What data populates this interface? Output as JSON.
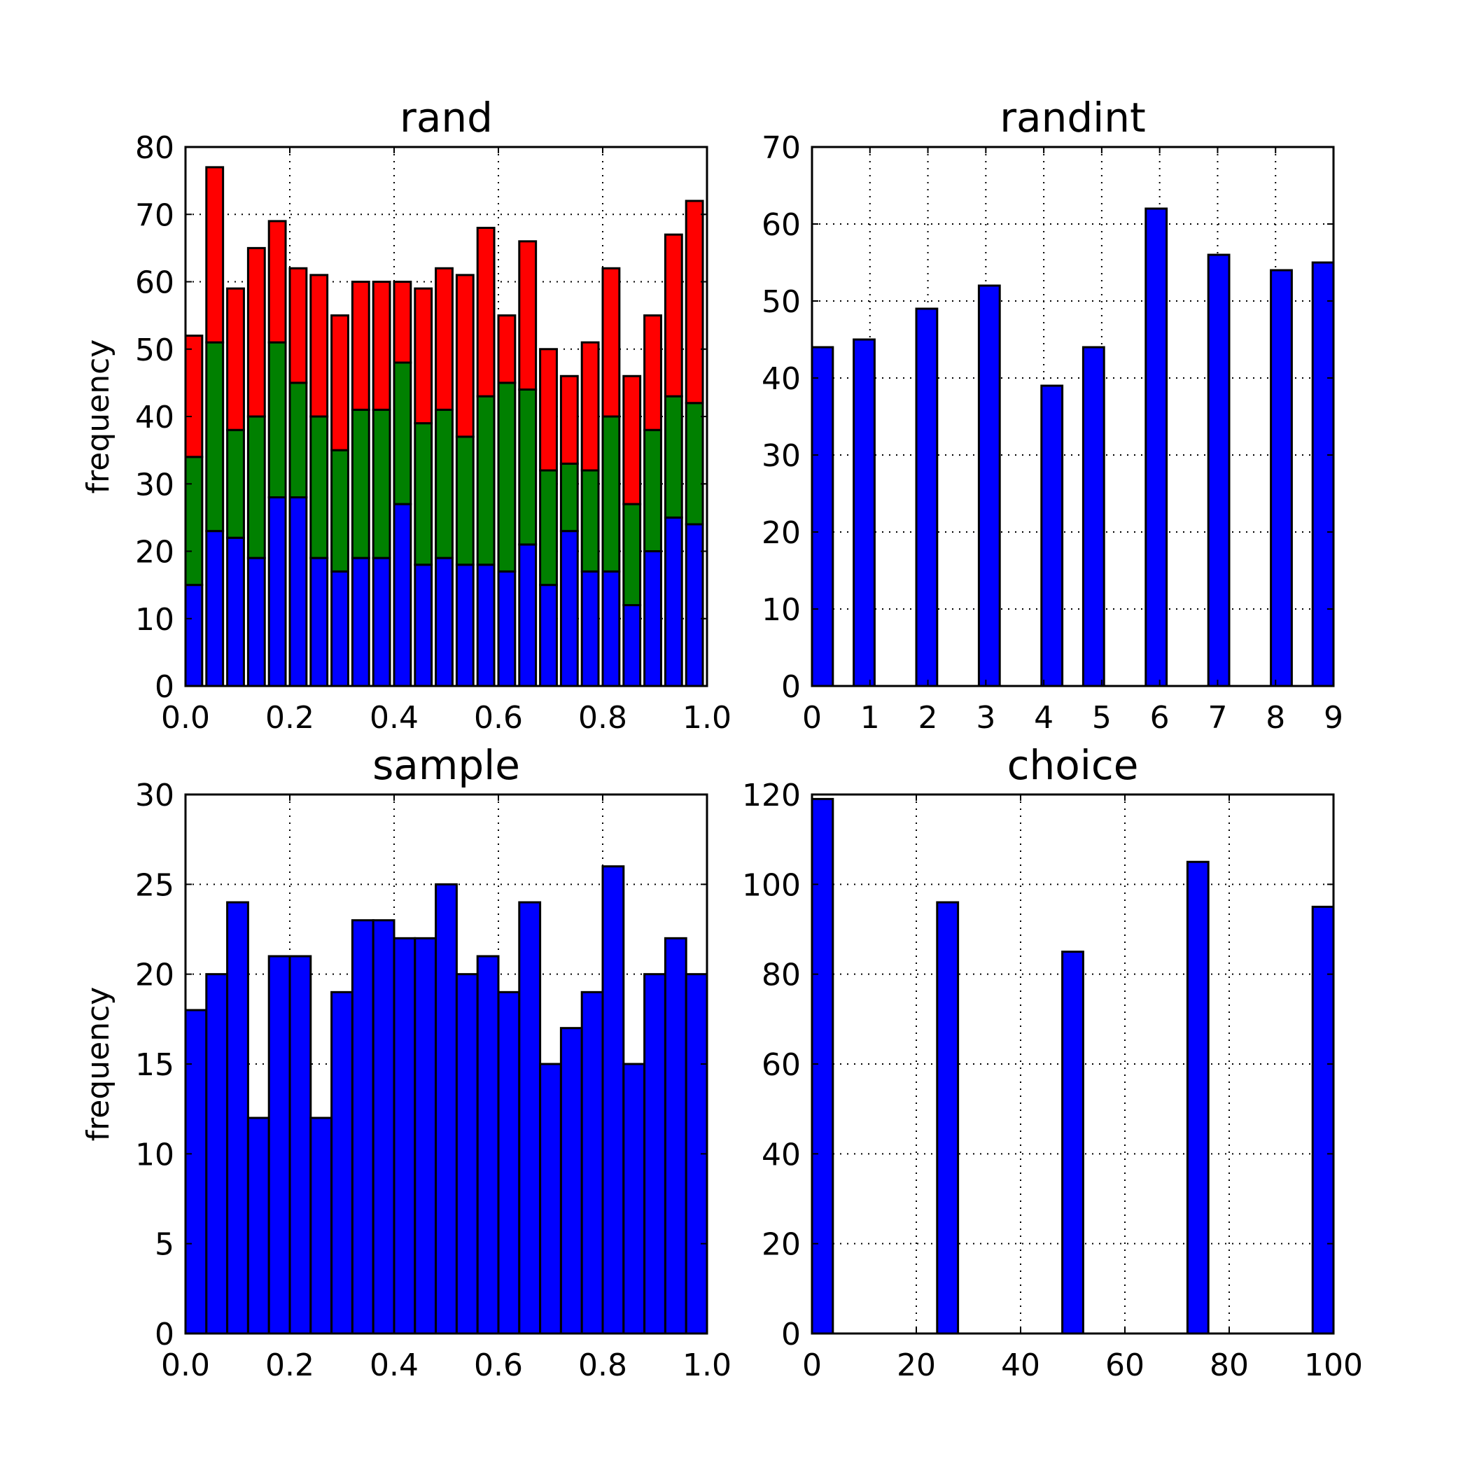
{
  "chart_data": [
    {
      "type": "bar",
      "stacked": true,
      "title": "rand",
      "ylabel": "frequency",
      "xlabel": "",
      "xlim": [
        0.0,
        1.0
      ],
      "ylim": [
        0,
        80
      ],
      "xticks": [
        0.0,
        0.2,
        0.4,
        0.6,
        0.8,
        1.0
      ],
      "xtick_labels": [
        "0.0",
        "0.2",
        "0.4",
        "0.6",
        "0.8",
        "1.0"
      ],
      "yticks": [
        0,
        10,
        20,
        30,
        40,
        50,
        60,
        70,
        80
      ],
      "ytick_labels": [
        "0",
        "10",
        "20",
        "30",
        "40",
        "50",
        "60",
        "70",
        "80"
      ],
      "grid": true,
      "bins": 25,
      "bin_width_fraction": 0.8,
      "series": [
        {
          "color": "#0000ff",
          "values": [
            15,
            23,
            22,
            19,
            28,
            28,
            19,
            17,
            19,
            19,
            27,
            18,
            19,
            18,
            18,
            17,
            21,
            15,
            23,
            17,
            17,
            12,
            20,
            25,
            24
          ]
        },
        {
          "color": "#008000",
          "values": [
            19,
            28,
            16,
            21,
            23,
            17,
            21,
            18,
            22,
            22,
            21,
            21,
            22,
            19,
            25,
            28,
            23,
            17,
            10,
            15,
            23,
            15,
            18,
            18,
            18
          ]
        },
        {
          "color": "#ff0000",
          "values": [
            18,
            26,
            21,
            25,
            18,
            17,
            21,
            20,
            19,
            19,
            12,
            20,
            21,
            24,
            25,
            10,
            22,
            18,
            13,
            19,
            22,
            19,
            17,
            24,
            30
          ]
        }
      ]
    },
    {
      "type": "bar",
      "title": "randint",
      "ylabel": "",
      "xlabel": "",
      "xlim": [
        0,
        9
      ],
      "ylim": [
        0,
        70
      ],
      "xticks": [
        0,
        1,
        2,
        3,
        4,
        5,
        6,
        7,
        8,
        9
      ],
      "xtick_labels": [
        "0",
        "1",
        "2",
        "3",
        "4",
        "5",
        "6",
        "7",
        "8",
        "9"
      ],
      "yticks": [
        0,
        10,
        20,
        30,
        40,
        50,
        60,
        70
      ],
      "ytick_labels": [
        "0",
        "10",
        "20",
        "30",
        "40",
        "50",
        "60",
        "70"
      ],
      "grid": true,
      "bin_width": 0.36,
      "series": [
        {
          "color": "#0000ff",
          "x": [
            0.18,
            0.9,
            1.98,
            3.06,
            4.14,
            4.86,
            5.94,
            7.02,
            8.1,
            8.82
          ],
          "values": [
            44,
            45,
            49,
            52,
            39,
            44,
            62,
            56,
            54,
            55
          ]
        }
      ]
    },
    {
      "type": "bar",
      "title": "sample",
      "ylabel": "frequency",
      "xlabel": "",
      "xlim": [
        0.0,
        1.0
      ],
      "ylim": [
        0,
        30
      ],
      "xticks": [
        0.0,
        0.2,
        0.4,
        0.6,
        0.8,
        1.0
      ],
      "xtick_labels": [
        "0.0",
        "0.2",
        "0.4",
        "0.6",
        "0.8",
        "1.0"
      ],
      "yticks": [
        0,
        5,
        10,
        15,
        20,
        25,
        30
      ],
      "ytick_labels": [
        "0",
        "5",
        "10",
        "15",
        "20",
        "25",
        "30"
      ],
      "grid": true,
      "bins": 25,
      "bin_width_fraction": 1.0,
      "series": [
        {
          "color": "#0000ff",
          "values": [
            18,
            20,
            24,
            12,
            21,
            21,
            12,
            19,
            23,
            23,
            22,
            22,
            25,
            20,
            21,
            19,
            24,
            15,
            17,
            19,
            26,
            15,
            20,
            22,
            20
          ]
        }
      ]
    },
    {
      "type": "bar",
      "title": "choice",
      "ylabel": "",
      "xlabel": "",
      "xlim": [
        0,
        100
      ],
      "ylim": [
        0,
        120
      ],
      "xticks": [
        0,
        20,
        40,
        60,
        80,
        100
      ],
      "xtick_labels": [
        "0",
        "20",
        "40",
        "60",
        "80",
        "100"
      ],
      "yticks": [
        0,
        20,
        40,
        60,
        80,
        100,
        120
      ],
      "ytick_labels": [
        "0",
        "20",
        "40",
        "60",
        "80",
        "100",
        "120"
      ],
      "grid": true,
      "bin_width": 4,
      "series": [
        {
          "color": "#0000ff",
          "x": [
            2,
            26,
            50,
            74,
            98
          ],
          "values": [
            119,
            96,
            85,
            105,
            95
          ]
        }
      ]
    }
  ]
}
